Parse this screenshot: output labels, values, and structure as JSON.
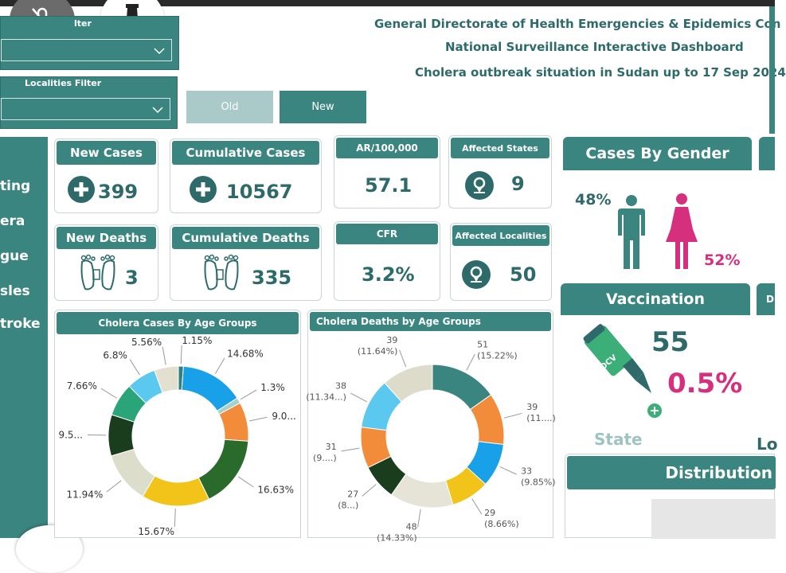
{
  "header": {
    "line1": "General Directorate of Health Emergencies &  Epidemics Con",
    "line2": "National Surveillance Interactive Dashboard",
    "line3": "Cholera  outbreak situation in Sudan up to 17 Sep 2024"
  },
  "filters": {
    "state_label": "lter",
    "localities_label": "Localities Filter"
  },
  "toggle": {
    "old": "Old",
    "new": "New"
  },
  "sidebar": {
    "items": [
      "ting",
      "era",
      "gue",
      "sles",
      "troke"
    ]
  },
  "kpis": {
    "new_cases": {
      "label": "New Cases",
      "value": "399"
    },
    "cumulative_cases": {
      "label": "Cumulative Cases",
      "value": "10567"
    },
    "ar": {
      "label": "AR/100,000",
      "value": "57.1"
    },
    "affected_states": {
      "label": "Affected States",
      "value": "9"
    },
    "new_deaths": {
      "label": "New Deaths",
      "value": "3"
    },
    "cumulative_deaths": {
      "label": "Cumulative Deaths",
      "value": "335"
    },
    "cfr": {
      "label": "CFR",
      "value": "3.2%"
    },
    "affected_localities": {
      "label": "Affected Localities",
      "value": "50"
    }
  },
  "gender": {
    "title": "Cases By Gender",
    "male": "48%",
    "female": "52%",
    "male_color": "#3b8580",
    "female_color": "#d62f7d"
  },
  "vaccination": {
    "title": "Vaccination",
    "count": "55",
    "percent": "0.5%",
    "bottle_text": "OCV",
    "state_label": "State",
    "lo_label": "Lo",
    "extra_tab": "D"
  },
  "distribution": {
    "title": "Distribution"
  },
  "chart_data": [
    {
      "type": "pie",
      "title": "Cholera Cases By Age Groups",
      "donut": true,
      "slices": [
        {
          "label": "1.15%",
          "value": 1.15,
          "color": "#2f7f86"
        },
        {
          "label": "14.68%",
          "value": 14.68,
          "color": "#18a0e8"
        },
        {
          "label": "1.3%",
          "value": 1.3,
          "color": "#a7d0c8"
        },
        {
          "label": "9.0...",
          "value": 9.0,
          "color": "#f28c3a"
        },
        {
          "label": "16.63%",
          "value": 16.63,
          "color": "#2a6b2c"
        },
        {
          "label": "15.67%",
          "value": 15.67,
          "color": "#f2c41a"
        },
        {
          "label": "11.94%",
          "value": 11.94,
          "color": "#ddddcc"
        },
        {
          "label": "9.5...",
          "value": 9.5,
          "color": "#1a3d1e"
        },
        {
          "label": "7.66%",
          "value": 7.66,
          "color": "#2aa57a"
        },
        {
          "label": "6.8%",
          "value": 6.8,
          "color": "#5ac8ef"
        },
        {
          "label": "5.56%",
          "value": 5.56,
          "color": "#e3e0cf"
        }
      ]
    },
    {
      "type": "pie",
      "title": "Cholera Deaths by Age Groups",
      "donut": true,
      "slices": [
        {
          "label": "51 (15.22%)",
          "value": 15.22,
          "color": "#3b8580"
        },
        {
          "label": "39 (11....)",
          "value": 11.64,
          "color": "#f28c3a"
        },
        {
          "label": "33 (9.85%)",
          "value": 9.85,
          "color": "#18a0e8"
        },
        {
          "label": "29 (8.66%)",
          "value": 8.66,
          "color": "#f2c41a"
        },
        {
          "label": "48 (14.33%)",
          "value": 14.33,
          "color": "#e6e4d6"
        },
        {
          "label": "27 (8...)",
          "value": 8.06,
          "color": "#1a3d1e"
        },
        {
          "label": "31 (9....)",
          "value": 9.25,
          "color": "#f28c3a"
        },
        {
          "label": "38 (11.34...)",
          "value": 11.34,
          "color": "#5ac8ef"
        },
        {
          "label": "39 (11.64%)",
          "value": 11.64,
          "color": "#dddccb"
        }
      ]
    }
  ]
}
